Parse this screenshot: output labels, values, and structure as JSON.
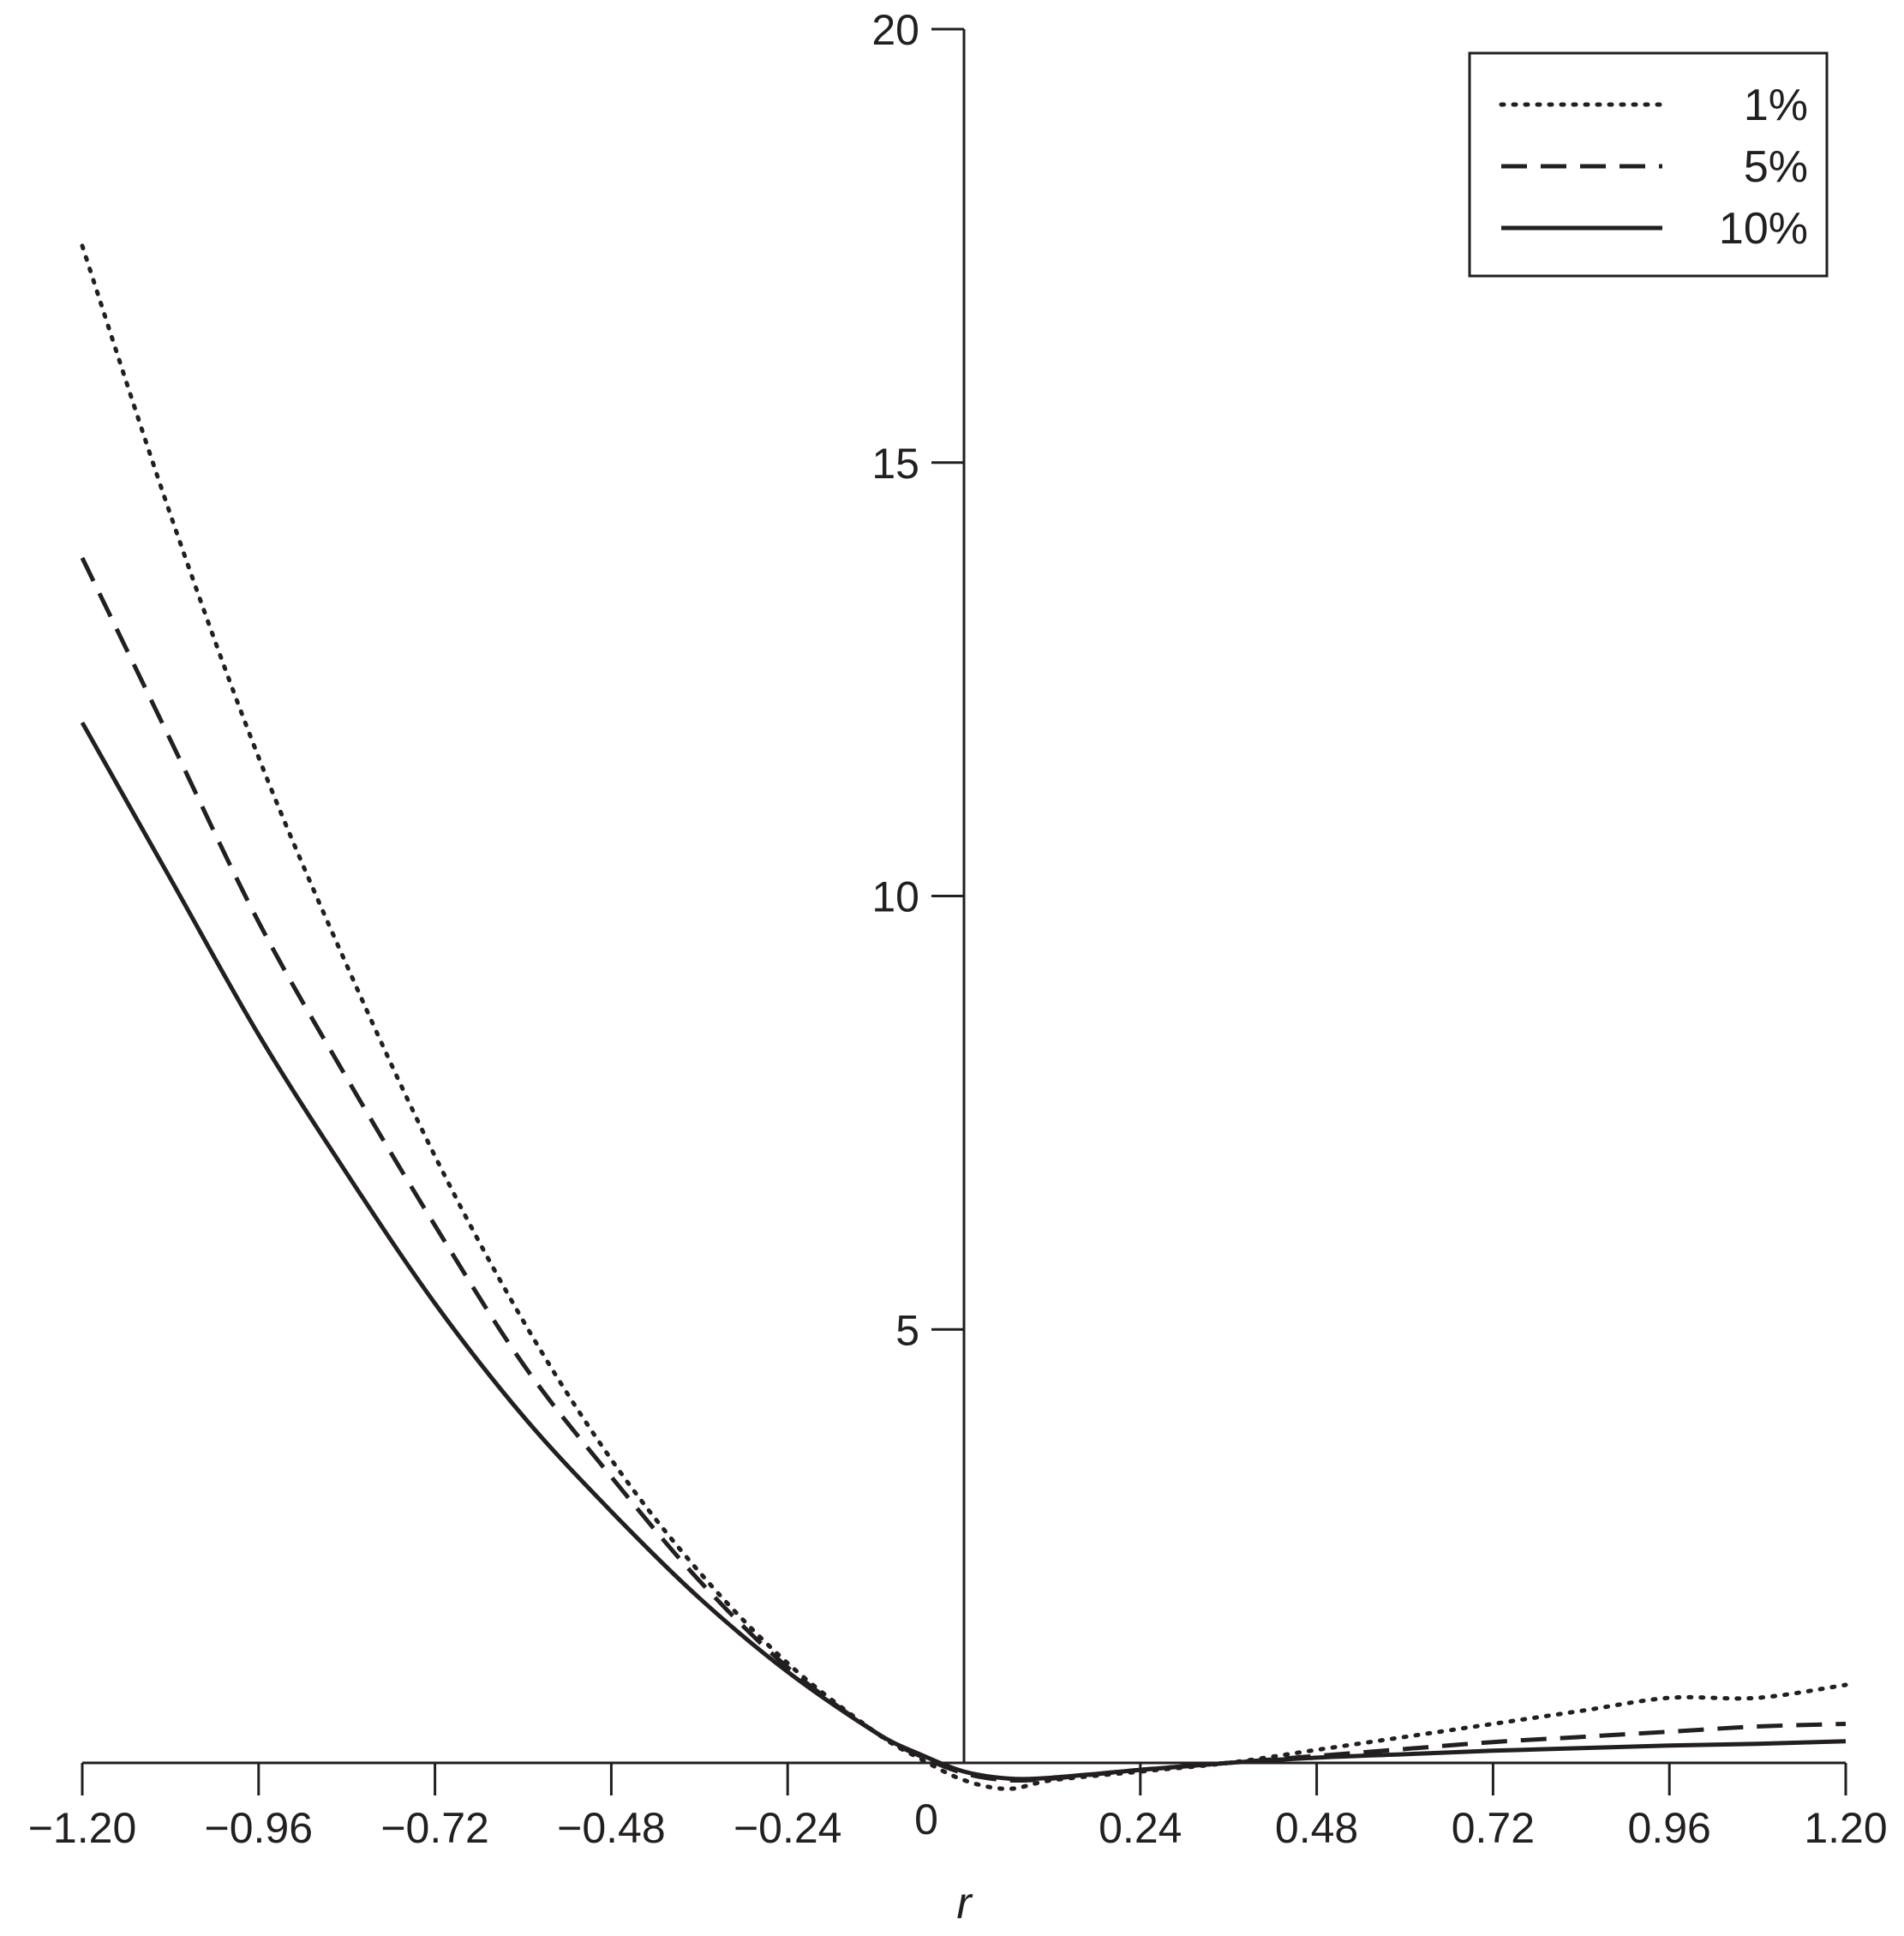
{
  "chart_data": {
    "type": "line",
    "title": "",
    "xlabel": "r",
    "ylabel": "",
    "xlim": [
      -1.2,
      1.2
    ],
    "ylim": [
      0,
      20
    ],
    "x_ticks": [
      "-1.20",
      "-0.96",
      "-0.72",
      "-0.48",
      "-0.24",
      "0",
      "0.24",
      "0.48",
      "0.72",
      "0.96",
      "1.20"
    ],
    "x_tick_values": [
      -1.2,
      -0.96,
      -0.72,
      -0.48,
      -0.24,
      0,
      0.24,
      0.48,
      0.72,
      0.96,
      1.2
    ],
    "y_ticks": [
      "5",
      "10",
      "15",
      "20"
    ],
    "y_tick_values": [
      5,
      10,
      15,
      20
    ],
    "grid": false,
    "legend_position": "top-right",
    "series": [
      {
        "name": "1%",
        "dash": "dotted",
        "x": [
          -1.2,
          -1.08,
          -0.96,
          -0.84,
          -0.72,
          -0.6,
          -0.48,
          -0.36,
          -0.24,
          -0.12,
          -0.06,
          0,
          0.06,
          0.12,
          0.24,
          0.36,
          0.48,
          0.6,
          0.72,
          0.84,
          0.96,
          1.08,
          1.2
        ],
        "y": [
          17.5,
          14.4,
          11.6,
          9.2,
          7.0,
          5.1,
          3.5,
          2.2,
          1.15,
          0.35,
          0.05,
          -0.2,
          -0.3,
          -0.2,
          -0.1,
          0.0,
          0.15,
          0.3,
          0.45,
          0.6,
          0.75,
          0.75,
          0.9
        ]
      },
      {
        "name": "5%",
        "dash": "dashed",
        "x": [
          -1.2,
          -1.08,
          -0.96,
          -0.84,
          -0.72,
          -0.6,
          -0.48,
          -0.36,
          -0.24,
          -0.12,
          -0.06,
          0,
          0.06,
          0.12,
          0.24,
          0.36,
          0.48,
          0.6,
          0.72,
          0.84,
          0.96,
          1.08,
          1.2
        ],
        "y": [
          13.9,
          11.8,
          9.7,
          7.9,
          6.2,
          4.6,
          3.3,
          2.1,
          1.1,
          0.35,
          0.08,
          -0.12,
          -0.2,
          -0.18,
          -0.08,
          0.0,
          0.08,
          0.16,
          0.24,
          0.3,
          0.36,
          0.42,
          0.45
        ]
      },
      {
        "name": "10%",
        "dash": "solid",
        "x": [
          -1.2,
          -1.08,
          -0.96,
          -0.84,
          -0.72,
          -0.6,
          -0.48,
          -0.36,
          -0.24,
          -0.12,
          -0.06,
          0,
          0.06,
          0.12,
          0.24,
          0.36,
          0.48,
          0.6,
          0.72,
          0.84,
          0.96,
          1.08,
          1.2
        ],
        "y": [
          12.0,
          10.2,
          8.4,
          6.8,
          5.3,
          4.0,
          2.9,
          1.9,
          1.05,
          0.35,
          0.1,
          -0.1,
          -0.18,
          -0.17,
          -0.08,
          0.0,
          0.06,
          0.1,
          0.14,
          0.17,
          0.2,
          0.22,
          0.25
        ]
      }
    ]
  }
}
